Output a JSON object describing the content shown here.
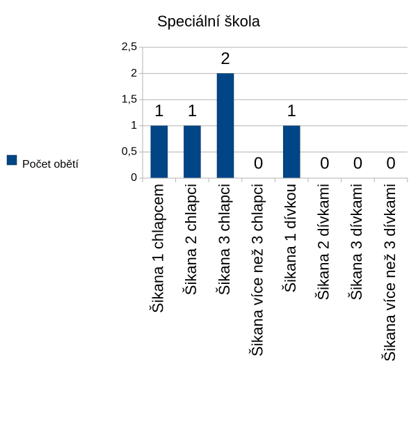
{
  "chart_data": {
    "type": "bar",
    "title": "Speciální škola",
    "categories": [
      "Šikana 1 chlapcem",
      "Šikana 2 chlapci",
      "Šikana 3 chlapci",
      "Šikana více než 3 chlapci",
      "Šikana 1 dívkou",
      "Šikana 2 dívkami",
      "Šikana 3 dívkami",
      "Šikana více než 3 dívkami"
    ],
    "series": [
      {
        "name": "Počet obětí",
        "color": "#004586",
        "values": [
          1,
          1,
          2,
          0,
          1,
          0,
          0,
          0
        ]
      }
    ],
    "ylim": [
      0,
      2.5
    ],
    "yticks": [
      0,
      {
        "value": 0.5,
        "label": "0,5"
      },
      1,
      {
        "value": 1.5,
        "label": "1,5"
      },
      2,
      {
        "value": 2.5,
        "label": "2,5"
      }
    ],
    "grid": true,
    "legend": "left"
  }
}
